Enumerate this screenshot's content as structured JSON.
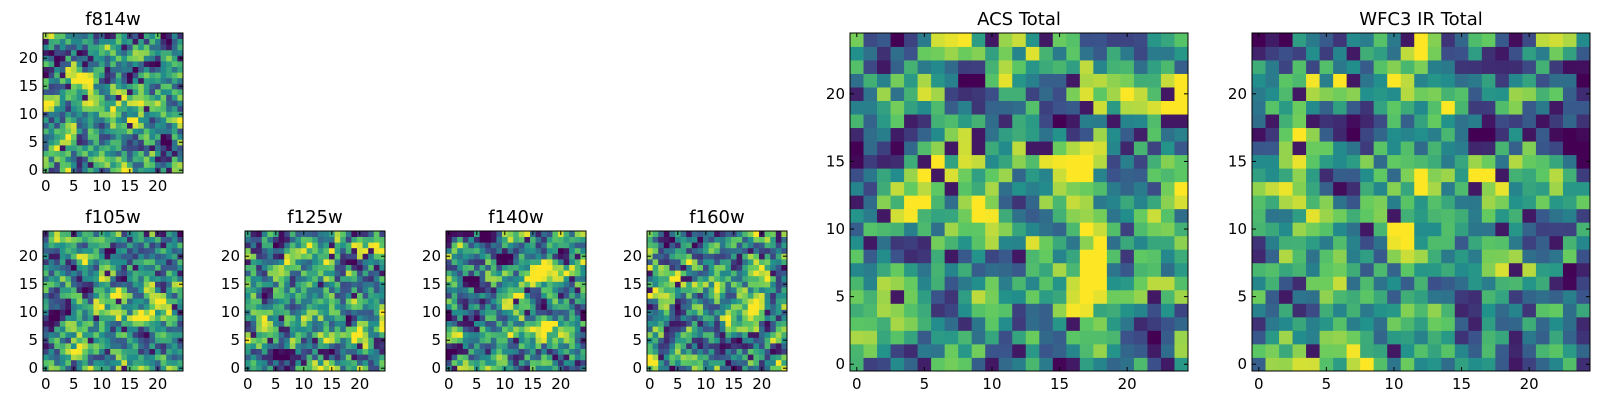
{
  "figure": {
    "description": "Grid of pixel-intensity heatmap panels (viridis colormap)",
    "colormap": "viridis",
    "colormap_stops": [
      "#440154",
      "#3b528b",
      "#21918c",
      "#5ec962",
      "#fde725"
    ]
  },
  "chart_data": [
    {
      "type": "heatmap",
      "id": "f814w",
      "title": "f814w",
      "grid_size": [
        25,
        25
      ],
      "xlim": [
        -0.5,
        24.5
      ],
      "ylim": [
        -0.5,
        24.5
      ],
      "xticks": [
        0,
        5,
        10,
        15,
        20
      ],
      "yticks": [
        0,
        5,
        10,
        15,
        20
      ],
      "xtick_labels": [
        "0",
        "5",
        "10",
        "15",
        "20"
      ],
      "ytick_labels": [
        "0",
        "5",
        "10",
        "15",
        "20"
      ],
      "seed": 814,
      "center": [
        13,
        11
      ],
      "contrast": 0.55
    },
    {
      "type": "heatmap",
      "id": "f105w",
      "title": "f105w",
      "grid_size": [
        25,
        25
      ],
      "xlim": [
        -0.5,
        24.5
      ],
      "ylim": [
        -0.5,
        24.5
      ],
      "xticks": [
        0,
        5,
        10,
        15,
        20
      ],
      "yticks": [
        0,
        5,
        10,
        15,
        20
      ],
      "xtick_labels": [
        "0",
        "5",
        "10",
        "15",
        "20"
      ],
      "ytick_labels": [
        "0",
        "5",
        "10",
        "15",
        "20"
      ],
      "seed": 105,
      "center": [
        13,
        12
      ],
      "contrast": 0.6
    },
    {
      "type": "heatmap",
      "id": "f125w",
      "title": "f125w",
      "grid_size": [
        25,
        25
      ],
      "xlim": [
        -0.5,
        24.5
      ],
      "ylim": [
        -0.5,
        24.5
      ],
      "xticks": [
        0,
        5,
        10,
        15,
        20
      ],
      "yticks": [
        0,
        5,
        10,
        15,
        20
      ],
      "xtick_labels": [
        "0",
        "5",
        "10",
        "15",
        "20"
      ],
      "ytick_labels": [
        "0",
        "5",
        "10",
        "15",
        "20"
      ],
      "seed": 125,
      "center": [
        12,
        12
      ],
      "contrast": 0.6
    },
    {
      "type": "heatmap",
      "id": "f140w",
      "title": "f140w",
      "grid_size": [
        25,
        25
      ],
      "xlim": [
        -0.5,
        24.5
      ],
      "ylim": [
        -0.5,
        24.5
      ],
      "xticks": [
        0,
        5,
        10,
        15,
        20
      ],
      "yticks": [
        0,
        5,
        10,
        15,
        20
      ],
      "xtick_labels": [
        "0",
        "5",
        "10",
        "15",
        "20"
      ],
      "ytick_labels": [
        "0",
        "5",
        "10",
        "15",
        "20"
      ],
      "seed": 140,
      "center": [
        12,
        11
      ],
      "contrast": 0.6
    },
    {
      "type": "heatmap",
      "id": "f160w",
      "title": "f160w",
      "grid_size": [
        25,
        25
      ],
      "xlim": [
        -0.5,
        24.5
      ],
      "ylim": [
        -0.5,
        24.5
      ],
      "xticks": [
        0,
        5,
        10,
        15,
        20
      ],
      "yticks": [
        0,
        5,
        10,
        15,
        20
      ],
      "xtick_labels": [
        "0",
        "5",
        "10",
        "15",
        "20"
      ],
      "ytick_labels": [
        "0",
        "5",
        "10",
        "15",
        "20"
      ],
      "seed": 160,
      "center": [
        13,
        12
      ],
      "contrast": 0.6
    },
    {
      "type": "heatmap",
      "id": "acs-total",
      "title": "ACS Total",
      "grid_size": [
        25,
        25
      ],
      "xlim": [
        -0.5,
        24.5
      ],
      "ylim": [
        -0.5,
        24.5
      ],
      "xticks": [
        0,
        5,
        10,
        15,
        20
      ],
      "yticks": [
        0,
        5,
        10,
        15,
        20
      ],
      "xtick_labels": [
        "0",
        "5",
        "10",
        "15",
        "20"
      ],
      "ytick_labels": [
        "0",
        "5",
        "10",
        "15",
        "20"
      ],
      "seed": 1001,
      "center": [
        14,
        10
      ],
      "contrast": 0.5
    },
    {
      "type": "heatmap",
      "id": "wfc3-ir-total",
      "title": "WFC3 IR Total",
      "grid_size": [
        25,
        25
      ],
      "xlim": [
        -0.5,
        24.5
      ],
      "ylim": [
        -0.5,
        24.5
      ],
      "xticks": [
        0,
        5,
        10,
        15,
        20
      ],
      "yticks": [
        0,
        5,
        10,
        15,
        20
      ],
      "xtick_labels": [
        "0",
        "5",
        "10",
        "15",
        "20"
      ],
      "ytick_labels": [
        "0",
        "5",
        "10",
        "15",
        "20"
      ],
      "seed": 2002,
      "center": [
        13,
        13
      ],
      "contrast": 0.5
    }
  ]
}
